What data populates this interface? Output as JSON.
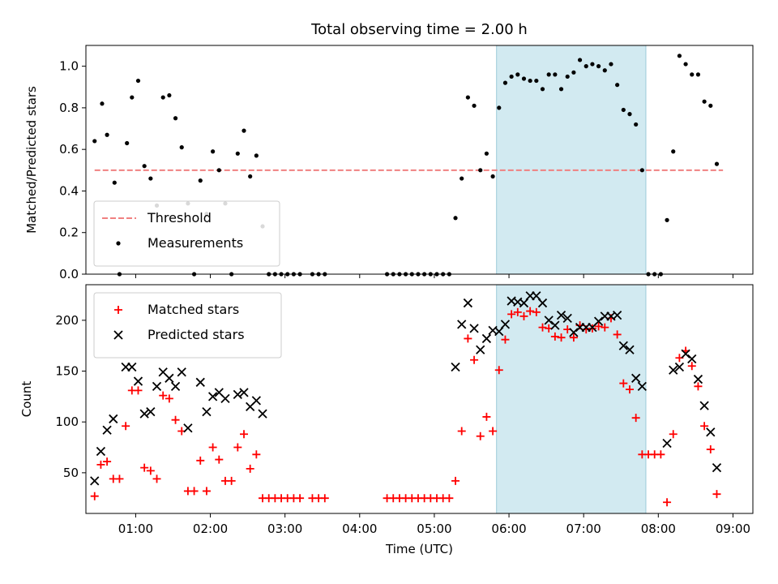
{
  "chart_data": [
    {
      "type": "scatter",
      "title": "Total observing time = 2.00 h",
      "xlabel": "",
      "ylabel": "Matched/Predicted stars",
      "xlim": [
        "00:20",
        "09:16"
      ],
      "ylim": [
        0,
        1.1
      ],
      "yticks": [
        "0.0",
        "0.2",
        "0.4",
        "0.6",
        "0.8",
        "1.0"
      ],
      "legend_position": "lower-left",
      "shaded_interval": {
        "start": "05:50",
        "end": "07:50",
        "color": "#add8e6"
      },
      "threshold": {
        "name": "Threshold",
        "value": 0.5,
        "x_start": "00:27",
        "x_end": "08:52",
        "color": "#f08080",
        "style": "dashed"
      },
      "series": [
        {
          "name": "Measurements",
          "color": "#000000",
          "marker": "dot",
          "points": [
            [
              "00:27",
              0.64
            ],
            [
              "00:33",
              0.82
            ],
            [
              "00:37",
              0.67
            ],
            [
              "00:43",
              0.44
            ],
            [
              "00:47",
              0.0
            ],
            [
              "00:53",
              0.63
            ],
            [
              "00:57",
              0.85
            ],
            [
              "01:02",
              0.93
            ],
            [
              "01:07",
              0.52
            ],
            [
              "01:12",
              0.46
            ],
            [
              "01:17",
              0.33
            ],
            [
              "01:22",
              0.85
            ],
            [
              "01:27",
              0.86
            ],
            [
              "01:32",
              0.75
            ],
            [
              "01:37",
              0.61
            ],
            [
              "01:42",
              0.34
            ],
            [
              "01:47",
              0.0
            ],
            [
              "01:52",
              0.45
            ],
            [
              "01:57",
              0.29
            ],
            [
              "02:02",
              0.59
            ],
            [
              "02:07",
              0.5
            ],
            [
              "02:12",
              0.34
            ],
            [
              "02:17",
              0.0
            ],
            [
              "02:22",
              0.58
            ],
            [
              "02:27",
              0.69
            ],
            [
              "02:32",
              0.47
            ],
            [
              "02:37",
              0.57
            ],
            [
              "02:42",
              0.23
            ],
            [
              "02:47",
              0.0
            ],
            [
              "02:52",
              0.0
            ],
            [
              "02:57",
              0.0
            ],
            [
              "03:02",
              0.0
            ],
            [
              "03:07",
              0.0
            ],
            [
              "03:12",
              0.0
            ],
            [
              "03:22",
              0.0
            ],
            [
              "03:27",
              0.0
            ],
            [
              "03:32",
              0.0
            ],
            [
              "04:22",
              0.0
            ],
            [
              "04:27",
              0.0
            ],
            [
              "04:32",
              0.0
            ],
            [
              "04:37",
              0.0
            ],
            [
              "04:42",
              0.0
            ],
            [
              "04:47",
              0.0
            ],
            [
              "04:52",
              0.0
            ],
            [
              "04:57",
              0.0
            ],
            [
              "05:02",
              0.0
            ],
            [
              "05:07",
              0.0
            ],
            [
              "05:12",
              0.0
            ],
            [
              "05:17",
              0.27
            ],
            [
              "05:22",
              0.46
            ],
            [
              "05:27",
              0.85
            ],
            [
              "05:32",
              0.81
            ],
            [
              "05:37",
              0.5
            ],
            [
              "05:42",
              0.58
            ],
            [
              "05:47",
              0.47
            ],
            [
              "05:52",
              0.8
            ],
            [
              "05:57",
              0.92
            ],
            [
              "06:02",
              0.95
            ],
            [
              "06:07",
              0.96
            ],
            [
              "06:12",
              0.94
            ],
            [
              "06:17",
              0.93
            ],
            [
              "06:22",
              0.93
            ],
            [
              "06:27",
              0.89
            ],
            [
              "06:32",
              0.96
            ],
            [
              "06:37",
              0.96
            ],
            [
              "06:42",
              0.89
            ],
            [
              "06:47",
              0.95
            ],
            [
              "06:52",
              0.97
            ],
            [
              "06:57",
              1.03
            ],
            [
              "07:02",
              1.0
            ],
            [
              "07:07",
              1.01
            ],
            [
              "07:12",
              1.0
            ],
            [
              "07:17",
              0.98
            ],
            [
              "07:22",
              1.01
            ],
            [
              "07:27",
              0.91
            ],
            [
              "07:32",
              0.79
            ],
            [
              "07:37",
              0.77
            ],
            [
              "07:42",
              0.72
            ],
            [
              "07:47",
              0.5
            ],
            [
              "07:52",
              0.0
            ],
            [
              "07:57",
              0.0
            ],
            [
              "08:02",
              0.0
            ],
            [
              "08:07",
              0.26
            ],
            [
              "08:12",
              0.59
            ],
            [
              "08:17",
              1.05
            ],
            [
              "08:22",
              1.01
            ],
            [
              "08:27",
              0.96
            ],
            [
              "08:32",
              0.96
            ],
            [
              "08:37",
              0.83
            ],
            [
              "08:42",
              0.81
            ],
            [
              "08:47",
              0.53
            ]
          ]
        }
      ]
    },
    {
      "type": "scatter",
      "title": "",
      "xlabel": "Time (UTC)",
      "ylabel": "Count",
      "xlim": [
        "00:20",
        "09:16"
      ],
      "ylim": [
        10,
        235
      ],
      "xticks": [
        "01:00",
        "02:00",
        "03:00",
        "04:00",
        "05:00",
        "06:00",
        "07:00",
        "08:00",
        "09:00"
      ],
      "yticks": [
        "50",
        "100",
        "150",
        "200"
      ],
      "legend_position": "upper-left",
      "shaded_interval": {
        "start": "05:50",
        "end": "07:50",
        "color": "#add8e6"
      },
      "series": [
        {
          "name": "Matched stars",
          "color": "#ff0000",
          "marker": "plus",
          "points": [
            [
              "00:27",
              27
            ],
            [
              "00:32",
              58
            ],
            [
              "00:37",
              61
            ],
            [
              "00:42",
              44
            ],
            [
              "00:47",
              44
            ],
            [
              "00:52",
              96
            ],
            [
              "00:57",
              131
            ],
            [
              "01:02",
              131
            ],
            [
              "01:07",
              55
            ],
            [
              "01:12",
              52
            ],
            [
              "01:17",
              44
            ],
            [
              "01:22",
              126
            ],
            [
              "01:27",
              123
            ],
            [
              "01:32",
              102
            ],
            [
              "01:37",
              91
            ],
            [
              "01:42",
              32
            ],
            [
              "01:47",
              32
            ],
            [
              "01:52",
              62
            ],
            [
              "01:57",
              32
            ],
            [
              "02:02",
              75
            ],
            [
              "02:07",
              63
            ],
            [
              "02:12",
              42
            ],
            [
              "02:17",
              42
            ],
            [
              "02:22",
              75
            ],
            [
              "02:27",
              88
            ],
            [
              "02:32",
              54
            ],
            [
              "02:37",
              68
            ],
            [
              "02:42",
              25
            ],
            [
              "02:47",
              25
            ],
            [
              "02:52",
              25
            ],
            [
              "02:57",
              25
            ],
            [
              "03:02",
              25
            ],
            [
              "03:07",
              25
            ],
            [
              "03:12",
              25
            ],
            [
              "03:22",
              25
            ],
            [
              "03:27",
              25
            ],
            [
              "03:32",
              25
            ],
            [
              "04:22",
              25
            ],
            [
              "04:27",
              25
            ],
            [
              "04:32",
              25
            ],
            [
              "04:37",
              25
            ],
            [
              "04:42",
              25
            ],
            [
              "04:47",
              25
            ],
            [
              "04:52",
              25
            ],
            [
              "04:57",
              25
            ],
            [
              "05:02",
              25
            ],
            [
              "05:07",
              25
            ],
            [
              "05:12",
              25
            ],
            [
              "05:17",
              42
            ],
            [
              "05:22",
              91
            ],
            [
              "05:27",
              182
            ],
            [
              "05:32",
              161
            ],
            [
              "05:37",
              86
            ],
            [
              "05:42",
              105
            ],
            [
              "05:47",
              91
            ],
            [
              "05:52",
              151
            ],
            [
              "05:57",
              181
            ],
            [
              "06:02",
              206
            ],
            [
              "06:07",
              208
            ],
            [
              "06:12",
              204
            ],
            [
              "06:17",
              209
            ],
            [
              "06:22",
              208
            ],
            [
              "06:27",
              193
            ],
            [
              "06:32",
              192
            ],
            [
              "06:37",
              184
            ],
            [
              "06:42",
              183
            ],
            [
              "06:47",
              191
            ],
            [
              "06:52",
              183
            ],
            [
              "06:57",
              195
            ],
            [
              "07:02",
              191
            ],
            [
              "07:07",
              192
            ],
            [
              "07:12",
              194
            ],
            [
              "07:17",
              193
            ],
            [
              "07:22",
              202
            ],
            [
              "07:27",
              186
            ],
            [
              "07:32",
              138
            ],
            [
              "07:37",
              132
            ],
            [
              "07:42",
              104
            ],
            [
              "07:47",
              68
            ],
            [
              "07:52",
              68
            ],
            [
              "07:57",
              68
            ],
            [
              "08:02",
              68
            ],
            [
              "08:07",
              21
            ],
            [
              "08:12",
              88
            ],
            [
              "08:17",
              163
            ],
            [
              "08:22",
              170
            ],
            [
              "08:27",
              155
            ],
            [
              "08:32",
              135
            ],
            [
              "08:37",
              96
            ],
            [
              "08:42",
              73
            ],
            [
              "08:47",
              29
            ]
          ]
        },
        {
          "name": "Predicted stars",
          "color": "#000000",
          "marker": "cross",
          "points": [
            [
              "00:27",
              42
            ],
            [
              "00:32",
              71
            ],
            [
              "00:37",
              92
            ],
            [
              "00:42",
              103
            ],
            [
              "00:52",
              154
            ],
            [
              "00:57",
              154
            ],
            [
              "01:02",
              140
            ],
            [
              "01:07",
              108
            ],
            [
              "01:12",
              110
            ],
            [
              "01:17",
              135
            ],
            [
              "01:22",
              149
            ],
            [
              "01:27",
              143
            ],
            [
              "01:32",
              135
            ],
            [
              "01:37",
              149
            ],
            [
              "01:42",
              94
            ],
            [
              "01:52",
              139
            ],
            [
              "01:57",
              110
            ],
            [
              "02:02",
              125
            ],
            [
              "02:07",
              129
            ],
            [
              "02:12",
              123
            ],
            [
              "02:22",
              127
            ],
            [
              "02:27",
              129
            ],
            [
              "02:32",
              115
            ],
            [
              "02:37",
              121
            ],
            [
              "02:42",
              108
            ],
            [
              "05:17",
              154
            ],
            [
              "05:22",
              196
            ],
            [
              "05:27",
              217
            ],
            [
              "05:32",
              192
            ],
            [
              "05:37",
              171
            ],
            [
              "05:42",
              182
            ],
            [
              "05:47",
              190
            ],
            [
              "05:52",
              189
            ],
            [
              "05:57",
              196
            ],
            [
              "06:02",
              219
            ],
            [
              "06:07",
              218
            ],
            [
              "06:12",
              217
            ],
            [
              "06:17",
              224
            ],
            [
              "06:22",
              224
            ],
            [
              "06:27",
              217
            ],
            [
              "06:32",
              200
            ],
            [
              "06:37",
              195
            ],
            [
              "06:42",
              205
            ],
            [
              "06:47",
              202
            ],
            [
              "06:52",
              188
            ],
            [
              "06:57",
              193
            ],
            [
              "07:02",
              193
            ],
            [
              "07:07",
              193
            ],
            [
              "07:12",
              199
            ],
            [
              "07:17",
              204
            ],
            [
              "07:22",
              204
            ],
            [
              "07:27",
              205
            ],
            [
              "07:32",
              175
            ],
            [
              "07:37",
              171
            ],
            [
              "07:42",
              143
            ],
            [
              "07:47",
              135
            ],
            [
              "08:07",
              79
            ],
            [
              "08:12",
              151
            ],
            [
              "08:17",
              154
            ],
            [
              "08:22",
              167
            ],
            [
              "08:27",
              162
            ],
            [
              "08:32",
              142
            ],
            [
              "08:37",
              116
            ],
            [
              "08:42",
              90
            ],
            [
              "08:47",
              55
            ]
          ]
        }
      ]
    }
  ]
}
